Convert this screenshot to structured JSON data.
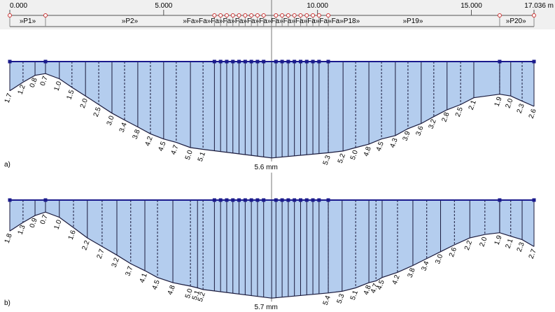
{
  "ruler": {
    "xlim": [
      0,
      17.036
    ],
    "xticks": [
      {
        "value": 0,
        "label": "0.000"
      },
      {
        "value": 5,
        "label": "5.000"
      },
      {
        "value": 10,
        "label": "10.000"
      },
      {
        "value": 15,
        "label": "15.000"
      },
      {
        "value": 17.036,
        "label": "17.036 m"
      }
    ],
    "nodes": [
      0,
      1.16,
      6.65,
      6.85,
      7.05,
      7.25,
      7.45,
      7.65,
      7.85,
      8.05,
      8.25,
      8.65,
      8.85,
      9.05,
      9.25,
      9.45,
      9.65,
      9.85,
      10.05,
      10.35,
      15.92,
      17.036
    ],
    "segments": [
      {
        "x": 0.58,
        "label": "»P1»"
      },
      {
        "x": 3.9,
        "label": "»P2»"
      },
      {
        "x": 8.5,
        "label": "»Fa»Fa»Fa»Fa»Fa»Fa»Fa»Fa»Fa»Fa»Fa»Fa»Fa»P18»"
      },
      {
        "x": 13.1,
        "label": "»P19»"
      },
      {
        "x": 16.45,
        "label": "»P20»"
      }
    ]
  },
  "chart_data": [
    {
      "type": "deflection",
      "label": "a)",
      "xlim": [
        0,
        17.036
      ],
      "x": [
        0,
        0.43,
        0.82,
        1.16,
        1.61,
        2.02,
        2.46,
        2.89,
        3.32,
        3.73,
        4.16,
        4.57,
        5.0,
        5.41,
        5.87,
        6.28,
        8.51,
        10.35,
        10.83,
        11.24,
        11.67,
        12.08,
        12.53,
        12.94,
        13.37,
        13.78,
        14.21,
        14.65,
        15.08,
        15.92,
        16.28,
        16.65,
        17.036
      ],
      "values": [
        1.7,
        1.2,
        0.8,
        0.7,
        1.0,
        1.5,
        2.0,
        2.5,
        3.0,
        3.4,
        3.8,
        4.2,
        4.5,
        4.7,
        5.0,
        5.1,
        5.6,
        5.3,
        5.2,
        5.0,
        4.8,
        4.5,
        4.3,
        3.9,
        3.6,
        3.2,
        2.8,
        2.5,
        2.1,
        1.9,
        2.0,
        2.3,
        2.6
      ],
      "value_labels": [
        "1.7",
        "1.2",
        "0.8",
        "0.7",
        "1.0",
        "1.5",
        "2.0",
        "2.5",
        "3.0",
        "3.4",
        "3.8",
        "4.2",
        "4.5",
        "4.7",
        "5.0",
        "5.1",
        "5.6 mm",
        "5.3",
        "5.2",
        "5.0",
        "4.8",
        "4.5",
        "4.3",
        "3.9",
        "3.6",
        "3.2",
        "2.8",
        "2.5",
        "2.1",
        "1.9",
        "2.0",
        "2.3",
        "2.6"
      ]
    },
    {
      "type": "deflection",
      "label": "b)",
      "xlim": [
        0,
        17.036
      ],
      "x": [
        0,
        0.43,
        0.82,
        1.16,
        1.61,
        2.07,
        2.52,
        3.0,
        3.48,
        3.93,
        4.39,
        4.8,
        5.3,
        5.87,
        6.1,
        6.28,
        8.51,
        10.35,
        10.8,
        11.24,
        11.67,
        11.9,
        12.1,
        12.6,
        13.1,
        13.55,
        14.0,
        14.45,
        14.95,
        15.44,
        15.92,
        16.28,
        16.65,
        17.036
      ],
      "values": [
        1.8,
        1.3,
        0.9,
        0.7,
        1.0,
        1.6,
        2.2,
        2.7,
        3.2,
        3.7,
        4.1,
        4.5,
        4.8,
        5.0,
        5.1,
        5.2,
        5.7,
        5.4,
        5.3,
        5.1,
        4.8,
        4.7,
        4.5,
        4.2,
        3.8,
        3.4,
        3.0,
        2.6,
        2.2,
        2.0,
        1.9,
        2.1,
        2.3,
        2.7
      ],
      "value_labels": [
        "1.8",
        "1.3",
        "0.9",
        "0.7",
        "1.0",
        "1.6",
        "2.2",
        "2.7",
        "3.2",
        "3.7",
        "4.1",
        "4.5",
        "4.8",
        "5.0",
        "5.1",
        "5.2",
        "5.7 mm",
        "5.4",
        "5.3",
        "5.1",
        "4.8",
        "4.7",
        "4.5",
        "4.2",
        "3.8",
        "3.4",
        "3.0",
        "2.6",
        "2.2",
        "2.0",
        "1.9",
        "2.1",
        "2.3",
        "2.7"
      ]
    }
  ]
}
